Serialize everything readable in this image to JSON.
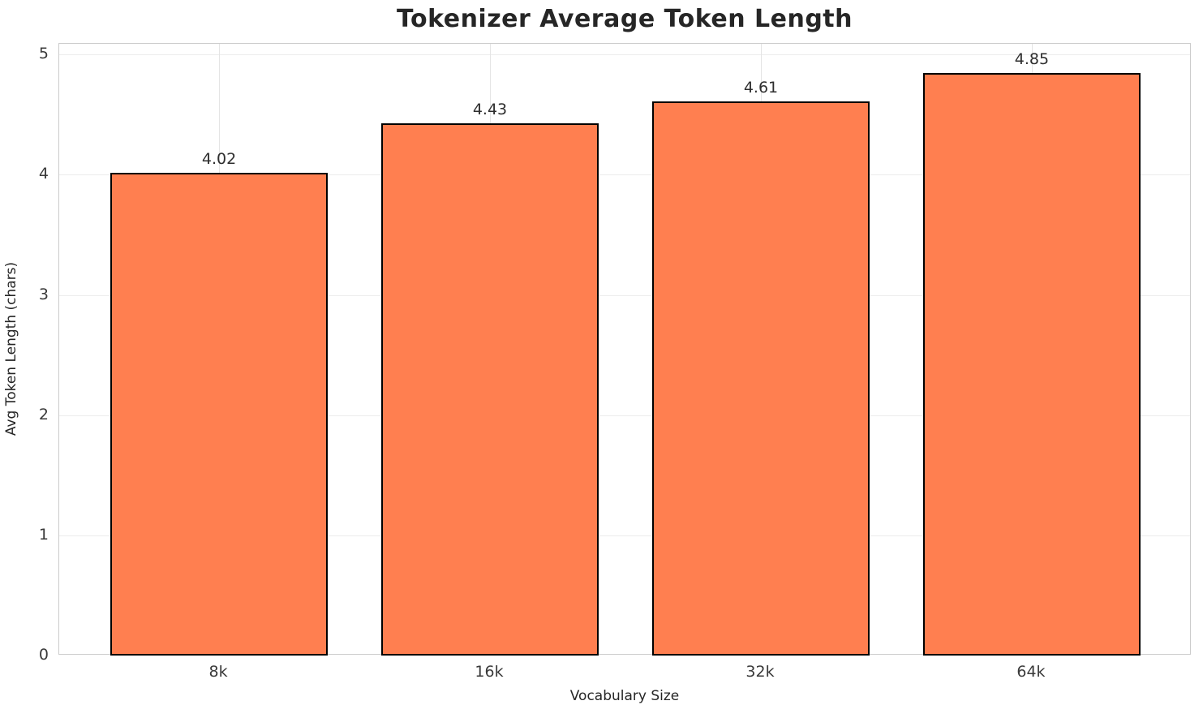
{
  "chart_data": {
    "type": "bar",
    "title": "Tokenizer Average Token Length",
    "xlabel": "Vocabulary Size",
    "ylabel": "Avg Token Length (chars)",
    "categories": [
      "8k",
      "16k",
      "32k",
      "64k"
    ],
    "values": [
      4.02,
      4.43,
      4.61,
      4.85
    ],
    "value_labels": [
      "4.02",
      "4.43",
      "4.61",
      "4.85"
    ],
    "ylim": [
      0,
      5.09
    ],
    "yticks": [
      0,
      1,
      2,
      3,
      4,
      5
    ],
    "ytick_labels": [
      "0",
      "1",
      "2",
      "3",
      "4",
      "5"
    ],
    "bar_width_fraction": 0.8,
    "x_margin": 0.59,
    "grid": true,
    "legend": "none",
    "colors": {
      "bar_fill": "#FF7F50",
      "bar_edge": "#000000",
      "grid_h": "#ececec",
      "grid_v": "#e4e4e4",
      "spine": "#cccccc",
      "title_text": "#262626",
      "axis_label_text": "#262626",
      "tick_text": "#3a3a3a",
      "value_label_text": "#2e2e2e",
      "background": "#ffffff"
    }
  }
}
